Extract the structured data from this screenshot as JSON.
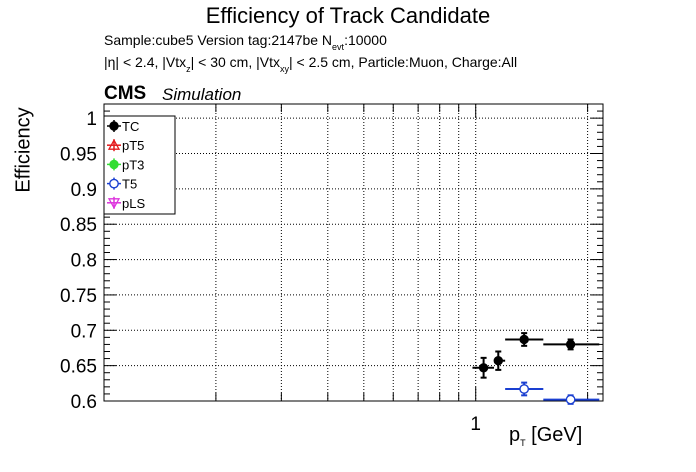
{
  "header": {
    "title": "Efficiency of Track Candidate",
    "sample": "Sample:cube5   Version tag:2147be  N",
    "nevt_sub": "evt",
    "nevt_val": ":10000",
    "cuts_a": "|η| < 2.4, |Vtx",
    "cuts_z": "z",
    "cuts_b": "| < 30 cm, |Vtx",
    "cuts_xy": "xy",
    "cuts_c": "| < 2.5 cm, Particle:Muon, Charge:All",
    "cms": "CMS",
    "simulation": "Simulation"
  },
  "chart_data": {
    "type": "scatter",
    "xlabel": "p",
    "xlabel_sub": "T",
    "xlabel_unit": " [GeV]",
    "ylabel": "Efficiency",
    "x_scale": "log",
    "xlim": [
      0.1,
      2.2
    ],
    "ylim": [
      0.6,
      1.02
    ],
    "grid": true,
    "legend_position": "top-left",
    "x_ticks": [
      {
        "value": 1,
        "label": "1"
      }
    ],
    "y_ticks": [
      {
        "value": 0.6,
        "label": "0.6"
      },
      {
        "value": 0.65,
        "label": "0.65"
      },
      {
        "value": 0.7,
        "label": "0.7"
      },
      {
        "value": 0.75,
        "label": "0.75"
      },
      {
        "value": 0.8,
        "label": "0.8"
      },
      {
        "value": 0.85,
        "label": "0.85"
      },
      {
        "value": 0.9,
        "label": "0.9"
      },
      {
        "value": 0.95,
        "label": "0.95"
      },
      {
        "value": 1,
        "label": "1"
      }
    ],
    "series": [
      {
        "name": "TC",
        "color": "#000000",
        "marker": "filled-circle",
        "points": [
          {
            "x": 1.05,
            "xlo": 0.98,
            "xhi": 1.12,
            "y": 0.647,
            "yerr": 0.014
          },
          {
            "x": 1.15,
            "xlo": 1.12,
            "xhi": 1.2,
            "y": 0.657,
            "yerr": 0.013
          },
          {
            "x": 1.35,
            "xlo": 1.2,
            "xhi": 1.52,
            "y": 0.687,
            "yerr": 0.009
          },
          {
            "x": 1.8,
            "xlo": 1.52,
            "xhi": 2.15,
            "y": 0.68,
            "yerr": 0.007
          }
        ]
      },
      {
        "name": "pT5",
        "color": "#e31a1c",
        "marker": "open-triangle",
        "points": []
      },
      {
        "name": "pT3",
        "color": "#33dd33",
        "marker": "filled-circle",
        "points": []
      },
      {
        "name": "T5",
        "color": "#1a3fd1",
        "marker": "open-circle",
        "points": [
          {
            "x": 1.35,
            "xlo": 1.2,
            "xhi": 1.52,
            "y": 0.617,
            "yerr": 0.009
          },
          {
            "x": 1.8,
            "xlo": 1.52,
            "xhi": 2.15,
            "y": 0.602,
            "yerr": 0.006
          }
        ]
      },
      {
        "name": "pLS",
        "color": "#dd33dd",
        "marker": "open-triangle-down",
        "points": []
      }
    ]
  }
}
